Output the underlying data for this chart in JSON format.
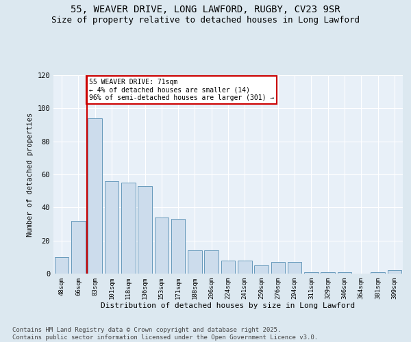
{
  "title1": "55, WEAVER DRIVE, LONG LAWFORD, RUGBY, CV23 9SR",
  "title2": "Size of property relative to detached houses in Long Lawford",
  "xlabel": "Distribution of detached houses by size in Long Lawford",
  "ylabel": "Number of detached properties",
  "categories": [
    "48sqm",
    "66sqm",
    "83sqm",
    "101sqm",
    "118sqm",
    "136sqm",
    "153sqm",
    "171sqm",
    "188sqm",
    "206sqm",
    "224sqm",
    "241sqm",
    "259sqm",
    "276sqm",
    "294sqm",
    "311sqm",
    "329sqm",
    "346sqm",
    "364sqm",
    "381sqm",
    "399sqm"
  ],
  "values": [
    10,
    32,
    94,
    56,
    55,
    53,
    34,
    33,
    14,
    14,
    8,
    8,
    5,
    7,
    7,
    1,
    1,
    1,
    0,
    1,
    2
  ],
  "bar_color": "#ccdcec",
  "bar_edge_color": "#6699bb",
  "vline_x": 1.5,
  "vline_color": "#cc0000",
  "annotation_text": "55 WEAVER DRIVE: 71sqm\n← 4% of detached houses are smaller (14)\n96% of semi-detached houses are larger (301) →",
  "annotation_box_color": "#ffffff",
  "annotation_box_edge": "#cc0000",
  "footnote": "Contains HM Land Registry data © Crown copyright and database right 2025.\nContains public sector information licensed under the Open Government Licence v3.0.",
  "ylim": [
    0,
    120
  ],
  "yticks": [
    0,
    20,
    40,
    60,
    80,
    100,
    120
  ],
  "bg_color": "#dce8f0",
  "plot_bg_color": "#e8f0f8",
  "grid_color": "#ffffff",
  "title1_fontsize": 10,
  "title2_fontsize": 9,
  "footnote_fontsize": 6.5
}
